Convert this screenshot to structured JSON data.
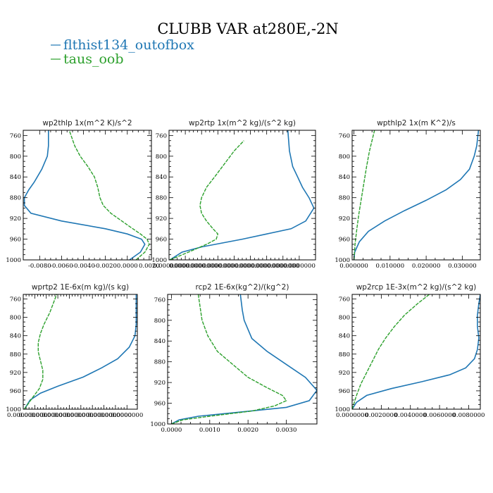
{
  "figure": {
    "title": "CLUBB VAR at280E,-2N",
    "legend": [
      {
        "label": "flthist134_outofbox",
        "color": "#1f77b4"
      },
      {
        "label": "taus_oob",
        "color": "#2ca02c"
      }
    ]
  },
  "chart_data": [
    {
      "type": "line",
      "title": "wp2thlp  1x(m^2 K)/s^2",
      "xlim": [
        -0.0095,
        0.0022
      ],
      "ylim": [
        1000,
        750
      ],
      "yticks": [
        760,
        800,
        840,
        880,
        920,
        960,
        1000
      ],
      "xticks": [
        -0.008,
        -0.006,
        -0.004,
        -0.002,
        0.0,
        0.002
      ],
      "xtick_labels": [
        "-0.0080",
        "-0.0060",
        "-0.0040",
        "-0.0020",
        "0.0000",
        "0.0020"
      ],
      "series": [
        {
          "name": "flthist134_outofbox",
          "color": "#1f77b4",
          "dash": false,
          "x": [
            0.0002,
            0.0012,
            0.0016,
            0.0013,
            0.0,
            -0.002,
            -0.006,
            -0.0088,
            -0.0094,
            -0.0094,
            -0.009,
            -0.0085,
            -0.0078,
            -0.0073,
            -0.0072,
            -0.0072
          ],
          "y": [
            1000,
            985,
            970,
            960,
            950,
            940,
            925,
            910,
            895,
            880,
            865,
            850,
            825,
            800,
            780,
            750
          ]
        },
        {
          "name": "taus_oob",
          "color": "#2ca02c",
          "dash": true,
          "x": [
            0.0008,
            0.0016,
            0.002,
            0.0018,
            0.0012,
            0.0005,
            -0.0005,
            -0.0015,
            -0.0022,
            -0.0025,
            -0.0027,
            -0.003,
            -0.0036,
            -0.0043,
            -0.0048,
            -0.0053
          ],
          "y": [
            1000,
            985,
            970,
            960,
            950,
            940,
            925,
            910,
            895,
            880,
            860,
            840,
            820,
            800,
            780,
            750
          ]
        }
      ]
    },
    {
      "type": "line",
      "title": "wp2rtp  1x(m^2 kg)/(s^2 kg)",
      "xlim": [
        0,
        9e-08
      ],
      "ylim": [
        1000,
        750
      ],
      "yticks": [
        760,
        800,
        840,
        880,
        920,
        960,
        1000
      ],
      "xticks": [
        0,
        1e-08,
        2e-08,
        3e-08,
        4e-08,
        5e-08,
        6e-08,
        7e-08,
        8e-08
      ],
      "xtick_labels": [
        "0.0000000",
        "0.0000000",
        "0.0000000",
        "0.0000000",
        "0.0000000",
        "0.0000000",
        "0.0000000",
        "0.0000000",
        "0.0000000"
      ],
      "series": [
        {
          "name": "flthist134_outofbox",
          "color": "#1f77b4",
          "dash": false,
          "x": [
            5e-10,
            8e-09,
            2e-08,
            4.5e-08,
            6e-08,
            7.5e-08,
            8.4e-08,
            8.9e-08,
            8.6e-08,
            8.2e-08,
            7.9e-08,
            7.6e-08,
            7.4e-08,
            7.3e-08
          ],
          "y": [
            1000,
            985,
            975,
            960,
            950,
            940,
            925,
            900,
            880,
            860,
            840,
            820,
            790,
            750
          ]
        },
        {
          "name": "taus_oob",
          "color": "#2ca02c",
          "dash": true,
          "x": [
            5e-10,
            1.2e-08,
            2.3e-08,
            2.9e-08,
            3e-08,
            2.7e-08,
            2.3e-08,
            2e-08,
            1.9e-08,
            2e-08,
            2.3e-08,
            2.8e-08,
            3.4e-08,
            4e-08,
            4.6e-08
          ],
          "y": [
            1000,
            985,
            970,
            960,
            950,
            940,
            925,
            910,
            895,
            880,
            860,
            840,
            815,
            790,
            770
          ]
        }
      ]
    },
    {
      "type": "line",
      "title": "wpthlp2  1x(m K^2)/s",
      "xlim": [
        -0.0005,
        0.035
      ],
      "ylim": [
        1000,
        750
      ],
      "yticks": [
        760,
        800,
        840,
        880,
        920,
        960,
        1000
      ],
      "xticks": [
        0.0,
        0.01,
        0.02,
        0.03
      ],
      "xtick_labels": [
        "0.000000",
        "0.010000",
        "0.020000",
        "0.030000"
      ],
      "series": [
        {
          "name": "flthist134_outofbox",
          "color": "#1f77b4",
          "dash": false,
          "x": [
            0.0,
            0.0002,
            0.0015,
            0.004,
            0.0085,
            0.014,
            0.02,
            0.0255,
            0.0295,
            0.032,
            0.0333,
            0.034,
            0.0345
          ],
          "y": [
            1000,
            985,
            965,
            945,
            925,
            905,
            885,
            865,
            845,
            825,
            800,
            780,
            750
          ]
        },
        {
          "name": "taus_oob",
          "color": "#2ca02c",
          "dash": true,
          "x": [
            0.0,
            0.0003,
            0.0008,
            0.0014,
            0.0021,
            0.0028,
            0.0035,
            0.0043,
            0.005,
            0.0057
          ],
          "y": [
            1000,
            970,
            940,
            910,
            880,
            850,
            820,
            790,
            770,
            750
          ]
        }
      ]
    },
    {
      "type": "line",
      "title": "wprtp2  1E-6x(m kg)/(s kg)",
      "xlim": [
        0,
        9.9e-06
      ],
      "ylim": [
        1000,
        750
      ],
      "yticks": [
        760,
        800,
        840,
        880,
        920,
        960,
        1000
      ],
      "xticks": [
        0,
        1e-06,
        2e-06,
        3e-06,
        4e-06,
        5e-06,
        6e-06,
        7e-06,
        8e-06,
        9e-06
      ],
      "xtick_labels": [
        "0.0000000",
        "0.0000000",
        "0.0000000",
        "0.0000000",
        "0.0000000",
        "0.0000000",
        "0.0000000",
        "0.0000000",
        "0.0000000",
        "0.0000000"
      ],
      "series": [
        {
          "name": "flthist134_outofbox",
          "color": "#1f77b4",
          "dash": false,
          "x": [
            1e-07,
            6e-07,
            1.5e-06,
            3e-06,
            5.2e-06,
            6.8e-06,
            8.2e-06,
            9.2e-06,
            9.7e-06,
            9.8e-06,
            9.8e-06,
            9.8e-06
          ],
          "y": [
            1000,
            980,
            965,
            950,
            930,
            910,
            890,
            865,
            840,
            815,
            790,
            750
          ]
        },
        {
          "name": "taus_oob",
          "color": "#2ca02c",
          "dash": true,
          "x": [
            1e-07,
            8e-07,
            1.4e-06,
            1.7e-06,
            1.7e-06,
            1.5e-06,
            1.3e-06,
            1.3e-06,
            1.5e-06,
            1.8e-06,
            2.3e-06,
            2.9e-06
          ],
          "y": [
            1000,
            975,
            955,
            935,
            915,
            895,
            875,
            855,
            835,
            815,
            790,
            750
          ]
        }
      ]
    },
    {
      "type": "line",
      "title": "rcp2  1E-6x(kg^2)/(kg^2)",
      "xlim": [
        -0.0001,
        0.0038
      ],
      "ylim": [
        1000,
        750
      ],
      "yticks": [
        760,
        800,
        840,
        880,
        920,
        960,
        1000
      ],
      "xticks": [
        0.0,
        0.001,
        0.002,
        0.003
      ],
      "xtick_labels": [
        "0.0000",
        "0.0010",
        "0.0020",
        "0.0030"
      ],
      "series": [
        {
          "name": "flthist134_outofbox",
          "color": "#1f77b4",
          "dash": false,
          "x": [
            0.0,
            0.0002,
            0.0007,
            0.0018,
            0.003,
            0.0036,
            0.0038,
            0.0035,
            0.003,
            0.0025,
            0.0021,
            0.0019,
            0.00185,
            0.0018
          ],
          "y": [
            1000,
            992,
            985,
            977,
            968,
            955,
            935,
            910,
            885,
            860,
            835,
            800,
            780,
            750
          ]
        },
        {
          "name": "taus_oob",
          "color": "#2ca02c",
          "dash": true,
          "x": [
            0.0,
            0.0003,
            0.001,
            0.0021,
            0.0027,
            0.003,
            0.0029,
            0.0025,
            0.002,
            0.0016,
            0.0012,
            0.00095,
            0.0008,
            0.0007
          ],
          "y": [
            1000,
            992,
            985,
            975,
            965,
            955,
            945,
            930,
            910,
            885,
            860,
            830,
            800,
            750
          ]
        }
      ]
    },
    {
      "type": "line",
      "title": "wp2rcp  1E-3x(m^2 kg)/(s^2 kg)",
      "xlim": [
        0,
        0.0088
      ],
      "ylim": [
        1000,
        750
      ],
      "yticks": [
        760,
        800,
        840,
        880,
        920,
        960,
        1000
      ],
      "xticks": [
        0.0,
        0.002,
        0.004,
        0.006,
        0.008
      ],
      "xtick_labels": [
        "0.0000000",
        "0.0020000",
        "0.0040000",
        "0.0060000",
        "0.0080000"
      ],
      "series": [
        {
          "name": "flthist134_outofbox",
          "color": "#1f77b4",
          "dash": false,
          "x": [
            0.0,
            0.0003,
            0.001,
            0.0027,
            0.0048,
            0.0067,
            0.0078,
            0.0084,
            0.0086,
            0.0087,
            0.0086,
            0.0086,
            0.0087,
            0.0088
          ],
          "y": [
            1000,
            985,
            970,
            955,
            940,
            925,
            910,
            890,
            870,
            845,
            820,
            795,
            770,
            750
          ]
        },
        {
          "name": "taus_oob",
          "color": "#2ca02c",
          "dash": true,
          "x": [
            0.0,
            0.0003,
            0.0006,
            0.001,
            0.0014,
            0.0018,
            0.0023,
            0.0029,
            0.0036,
            0.0045,
            0.0053
          ],
          "y": [
            1000,
            970,
            945,
            920,
            895,
            870,
            845,
            820,
            795,
            770,
            750
          ]
        }
      ]
    }
  ]
}
